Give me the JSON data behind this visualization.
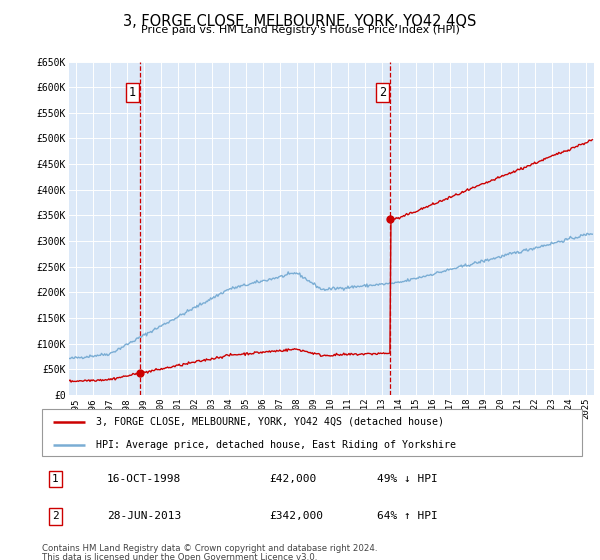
{
  "title": "3, FORGE CLOSE, MELBOURNE, YORK, YO42 4QS",
  "subtitle": "Price paid vs. HM Land Registry's House Price Index (HPI)",
  "red_line_label": "3, FORGE CLOSE, MELBOURNE, YORK, YO42 4QS (detached house)",
  "blue_line_label": "HPI: Average price, detached house, East Riding of Yorkshire",
  "transaction1_date": "16-OCT-1998",
  "transaction1_price": "£42,000",
  "transaction1_hpi": "49% ↓ HPI",
  "transaction1_year": 1998.79,
  "transaction1_price_val": 42000,
  "transaction2_date": "28-JUN-2013",
  "transaction2_price": "£342,000",
  "transaction2_hpi": "64% ↑ HPI",
  "transaction2_year": 2013.49,
  "transaction2_price_val": 342000,
  "footer_line1": "Contains HM Land Registry data © Crown copyright and database right 2024.",
  "footer_line2": "This data is licensed under the Open Government Licence v3.0.",
  "ylim": [
    0,
    650000
  ],
  "xlim_start": 1994.6,
  "xlim_end": 2025.5,
  "background_color": "#ffffff",
  "plot_bg_color": "#dce9f8",
  "grid_color": "#ffffff",
  "red_color": "#cc0000",
  "blue_color": "#7aadd4",
  "vline_color": "#cc0000",
  "yticks": [
    0,
    50000,
    100000,
    150000,
    200000,
    250000,
    300000,
    350000,
    400000,
    450000,
    500000,
    550000,
    600000,
    650000
  ],
  "ytick_labels": [
    "£0",
    "£50K",
    "£100K",
    "£150K",
    "£200K",
    "£250K",
    "£300K",
    "£350K",
    "£400K",
    "£450K",
    "£500K",
    "£550K",
    "£600K",
    "£650K"
  ],
  "xticks": [
    1995,
    1996,
    1997,
    1998,
    1999,
    2000,
    2001,
    2002,
    2003,
    2004,
    2005,
    2006,
    2007,
    2008,
    2009,
    2010,
    2011,
    2012,
    2013,
    2014,
    2015,
    2016,
    2017,
    2018,
    2019,
    2020,
    2021,
    2022,
    2023,
    2024,
    2025
  ]
}
